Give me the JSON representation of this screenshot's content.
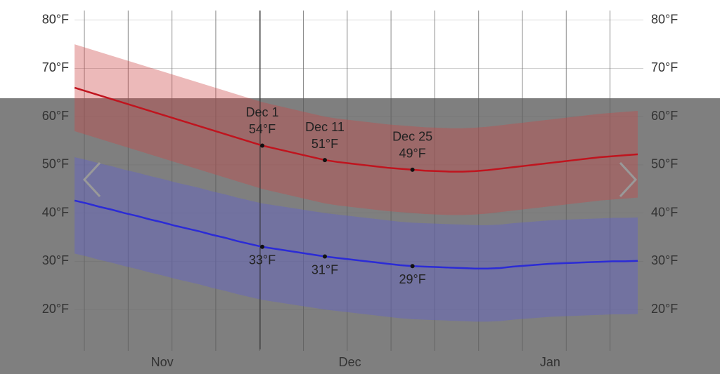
{
  "chart_data": {
    "type": "line",
    "categories": [
      null,
      null,
      null,
      null,
      null,
      null,
      null,
      "Nov",
      null,
      null,
      null,
      null,
      null,
      null,
      null,
      null,
      null,
      null,
      null,
      null,
      null,
      null,
      "Dec",
      null,
      null,
      null,
      null,
      null,
      null,
      null,
      null,
      null,
      null,
      null,
      null,
      null,
      null,
      null,
      "Jan",
      null,
      null,
      null,
      null,
      null,
      null,
      null
    ],
    "ylim": [
      11,
      82
    ],
    "yticks": [
      {
        "value": 20,
        "label": "20°F"
      },
      {
        "value": 30,
        "label": "30°F"
      },
      {
        "value": 40,
        "label": "40°F"
      },
      {
        "value": 50,
        "label": "50°F"
      },
      {
        "value": 60,
        "label": "60°F"
      },
      {
        "value": 70,
        "label": "70°F"
      },
      {
        "value": 80,
        "label": "80°F"
      }
    ],
    "bands": [
      {
        "color": "rgba(205,70,70,0.38)",
        "upper": [
          75,
          74.2,
          73.4,
          72.6,
          71.8,
          71,
          70.2,
          69.4,
          68.6,
          67.8,
          67,
          66.2,
          65.4,
          64.6,
          63.8,
          63,
          62.4,
          61.8,
          61.2,
          60.6,
          60,
          59.6,
          59.3,
          59,
          58.7,
          58.4,
          58.2,
          58,
          57.8,
          57.7,
          57.6,
          57.6,
          57.7,
          57.9,
          58.2,
          58.5,
          58.8,
          59.1,
          59.4,
          59.7,
          60,
          60.3,
          60.6,
          60.8,
          61,
          61.2
        ],
        "lower": [
          57,
          56.2,
          55.4,
          54.6,
          53.8,
          53,
          52.2,
          51.4,
          50.6,
          49.8,
          49,
          48.2,
          47.4,
          46.6,
          45.8,
          45,
          44.4,
          43.8,
          43.2,
          42.6,
          42,
          41.6,
          41.3,
          41,
          40.7,
          40.4,
          40.2,
          40,
          39.8,
          39.7,
          39.6,
          39.6,
          39.7,
          39.9,
          40.2,
          40.5,
          40.8,
          41.1,
          41.4,
          41.7,
          42,
          42.3,
          42.6,
          42.8,
          43,
          43.2
        ]
      },
      {
        "color": "rgba(95,95,215,0.38)",
        "upper": [
          51.6,
          51,
          50.3,
          49.7,
          49,
          48.4,
          47.7,
          47.1,
          46.4,
          45.8,
          45.2,
          44.5,
          43.9,
          43.2,
          42.6,
          42,
          41.6,
          41.2,
          40.8,
          40.4,
          40,
          39.7,
          39.4,
          39.1,
          38.8,
          38.5,
          38.2,
          38,
          37.9,
          37.8,
          37.7,
          37.6,
          37.5,
          37.5,
          37.6,
          37.9,
          38.1,
          38.3,
          38.5,
          38.6,
          38.7,
          38.8,
          38.9,
          39,
          39,
          39.1
        ],
        "lower": [
          31.6,
          31,
          30.3,
          29.7,
          29,
          28.4,
          27.7,
          27.1,
          26.4,
          25.8,
          25.2,
          24.5,
          23.9,
          23.2,
          22.6,
          22,
          21.6,
          21.2,
          20.8,
          20.4,
          20,
          19.7,
          19.4,
          19.1,
          18.8,
          18.5,
          18.2,
          18,
          17.9,
          17.8,
          17.7,
          17.6,
          17.5,
          17.5,
          17.6,
          17.9,
          18.1,
          18.3,
          18.5,
          18.6,
          18.7,
          18.8,
          18.9,
          19,
          19,
          19.1
        ]
      }
    ],
    "series": [
      {
        "color": "#c0141e",
        "values": [
          66,
          65.2,
          64.4,
          63.6,
          62.8,
          62,
          61.2,
          60.4,
          59.6,
          58.8,
          58,
          57.2,
          56.4,
          55.6,
          54.8,
          54,
          53.4,
          52.8,
          52.2,
          51.6,
          51,
          50.6,
          50.3,
          50,
          49.7,
          49.4,
          49.2,
          49,
          48.8,
          48.7,
          48.6,
          48.6,
          48.7,
          48.9,
          49.2,
          49.5,
          49.8,
          50.1,
          50.4,
          50.7,
          51,
          51.3,
          51.6,
          51.8,
          52,
          52.2
        ],
        "value_labels": [
          null,
          null,
          null,
          null,
          null,
          null,
          null,
          null,
          null,
          null,
          null,
          null,
          null,
          null,
          null,
          "54°F",
          null,
          null,
          null,
          null,
          "51°F",
          null,
          null,
          null,
          null,
          null,
          null,
          "49°F",
          null,
          null,
          null,
          null,
          null,
          null,
          null,
          null,
          null,
          null,
          null,
          null,
          null,
          null,
          null,
          null,
          null,
          null
        ],
        "point_labels": [
          null,
          null,
          null,
          null,
          null,
          null,
          null,
          null,
          null,
          null,
          null,
          null,
          null,
          null,
          null,
          "Dec 1",
          null,
          null,
          null,
          null,
          "Dec 11",
          null,
          null,
          null,
          null,
          null,
          null,
          "Dec 25",
          null,
          null,
          null,
          null,
          null,
          null,
          null,
          null,
          null,
          null,
          null,
          null,
          null,
          null,
          null,
          null,
          null,
          null
        ]
      },
      {
        "color": "#2b2bd6",
        "values": [
          42.6,
          42,
          41.3,
          40.7,
          40,
          39.4,
          38.7,
          38.1,
          37.4,
          36.8,
          36.2,
          35.5,
          34.9,
          34.2,
          33.6,
          33,
          32.6,
          32.2,
          31.8,
          31.4,
          31,
          30.7,
          30.4,
          30.1,
          29.8,
          29.5,
          29.2,
          29,
          28.9,
          28.8,
          28.7,
          28.6,
          28.5,
          28.5,
          28.6,
          28.9,
          29.1,
          29.3,
          29.5,
          29.6,
          29.7,
          29.8,
          29.9,
          30,
          30,
          30.1
        ],
        "value_labels": [
          null,
          null,
          null,
          null,
          null,
          null,
          null,
          null,
          null,
          null,
          null,
          null,
          null,
          null,
          null,
          "33°F",
          null,
          null,
          null,
          null,
          "31°F",
          null,
          null,
          null,
          null,
          null,
          null,
          "29°F",
          null,
          null,
          null,
          null,
          null,
          null,
          null,
          null,
          null,
          null,
          null,
          null,
          null,
          null,
          null,
          null,
          null,
          null
        ]
      }
    ]
  }
}
